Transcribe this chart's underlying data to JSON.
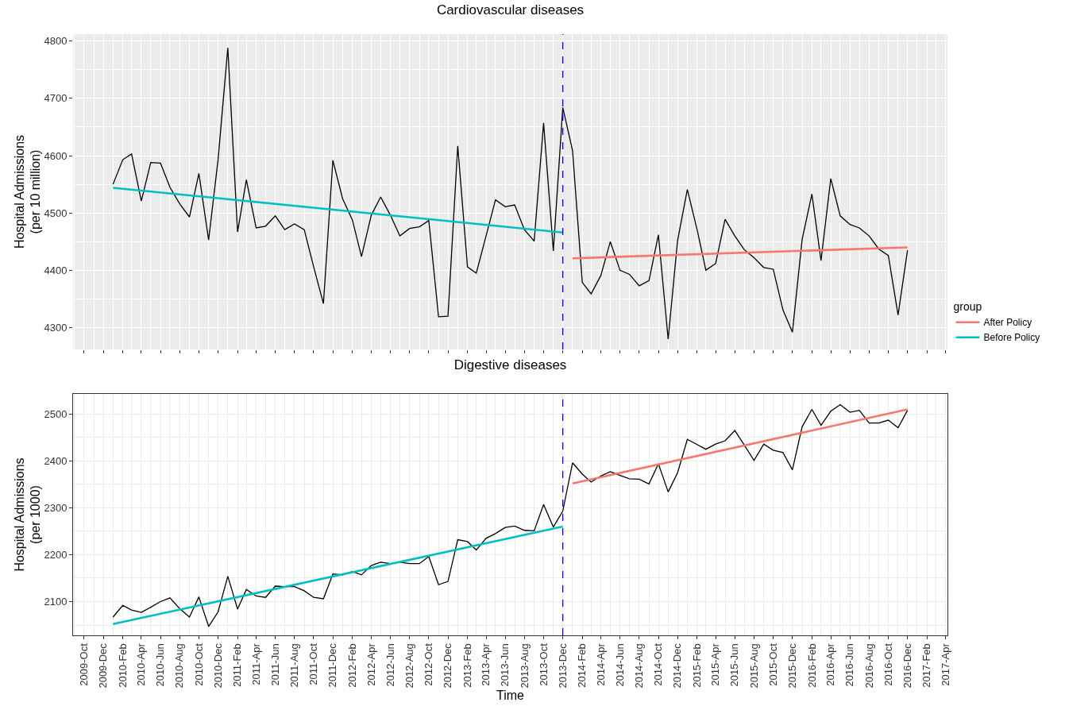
{
  "chart_data": [
    {
      "type": "line",
      "title": "Cardiovascular diseases",
      "ylabel": "Hospital Admissions\n(per 10 million)",
      "legend_title": "group",
      "legend": "right",
      "grid": true,
      "tick_labels": "y",
      "x": [
        "2010-01",
        "2010-02",
        "2010-03",
        "2010-04",
        "2010-05",
        "2010-06",
        "2010-07",
        "2010-08",
        "2010-09",
        "2010-10",
        "2010-11",
        "2010-12",
        "2011-01",
        "2011-02",
        "2011-03",
        "2011-04",
        "2011-05",
        "2011-06",
        "2011-07",
        "2011-08",
        "2011-09",
        "2011-10",
        "2011-11",
        "2011-12",
        "2012-01",
        "2012-02",
        "2012-03",
        "2012-04",
        "2012-05",
        "2012-06",
        "2012-07",
        "2012-08",
        "2012-09",
        "2012-10",
        "2012-11",
        "2012-12",
        "2013-01",
        "2013-02",
        "2013-03",
        "2013-04",
        "2013-05",
        "2013-06",
        "2013-07",
        "2013-08",
        "2013-09",
        "2013-10",
        "2013-11",
        "2013-12",
        "2014-01",
        "2014-02",
        "2014-03",
        "2014-04",
        "2014-05",
        "2014-06",
        "2014-07",
        "2014-08",
        "2014-09",
        "2014-10",
        "2014-11",
        "2014-12",
        "2015-01",
        "2015-02",
        "2015-03",
        "2015-04",
        "2015-05",
        "2015-06",
        "2015-07",
        "2015-08",
        "2015-09",
        "2015-10",
        "2015-11",
        "2015-12",
        "2016-01",
        "2016-02",
        "2016-03",
        "2016-04",
        "2016-05",
        "2016-06",
        "2016-07",
        "2016-08",
        "2016-09",
        "2016-10",
        "2016-11",
        "2016-12"
      ],
      "series": [
        {
          "color": "#000000",
          "values": [
            4550,
            4593,
            4603,
            4521,
            4588,
            4587,
            4545,
            4516,
            4493,
            4569,
            4453,
            4593,
            4788,
            4467,
            4558,
            4474,
            4477,
            4495,
            4471,
            4481,
            4471,
            4406,
            4342,
            4592,
            4525,
            4488,
            4424,
            4496,
            4528,
            4496,
            4460,
            4473,
            4476,
            4487,
            4319,
            4320,
            4617,
            4406,
            4395,
            4460,
            4523,
            4511,
            4514,
            4471,
            4451,
            4657,
            4434,
            4684,
            4609,
            4379,
            4359,
            4391,
            4450,
            4400,
            4393,
            4373,
            4382,
            4462,
            4280,
            4452,
            4541,
            4471,
            4400,
            4412,
            4489,
            4460,
            4436,
            4422,
            4405,
            4402,
            4331,
            4292,
            4454,
            4533,
            4417,
            4560,
            4495,
            4480,
            4474,
            4460,
            4437,
            4426,
            4322,
            4435
          ]
        },
        {
          "name": "After Policy",
          "color": "#f8766d",
          "x": [
            "2014-01",
            "2016-12"
          ],
          "values": [
            4421,
            4440
          ]
        },
        {
          "name": "Before Policy",
          "color": "#00bfc4",
          "x": [
            "2010-01",
            "2013-12"
          ],
          "values": [
            4544,
            4466
          ]
        }
      ],
      "ref_lines": [
        {
          "axis": "x",
          "value": "2013-12",
          "color": "#0000ff",
          "line_style": "dashed"
        }
      ],
      "xlim": [
        "2009-08-27",
        "2017-04-07"
      ],
      "ylim": [
        4262,
        4812
      ],
      "yticks": [
        4300,
        4400,
        4500,
        4600,
        4700,
        4800
      ],
      "xticks": [
        {
          "value": "2009-10",
          "label": null
        },
        {
          "value": "2009-12",
          "label": null
        },
        {
          "value": "2010-02",
          "label": null
        },
        {
          "value": "2010-04",
          "label": null
        },
        {
          "value": "2010-06",
          "label": null
        },
        {
          "value": "2010-08",
          "label": null
        },
        {
          "value": "2010-10",
          "label": null
        },
        {
          "value": "2010-12",
          "label": null
        },
        {
          "value": "2011-02",
          "label": null
        },
        {
          "value": "2011-04",
          "label": null
        },
        {
          "value": "2011-06",
          "label": null
        },
        {
          "value": "2011-08",
          "label": null
        },
        {
          "value": "2011-10",
          "label": null
        },
        {
          "value": "2011-12",
          "label": null
        },
        {
          "value": "2012-02",
          "label": null
        },
        {
          "value": "2012-04",
          "label": null
        },
        {
          "value": "2012-06",
          "label": null
        },
        {
          "value": "2012-08",
          "label": null
        },
        {
          "value": "2012-10",
          "label": null
        },
        {
          "value": "2012-12",
          "label": null
        },
        {
          "value": "2013-02",
          "label": null
        },
        {
          "value": "2013-04",
          "label": null
        },
        {
          "value": "2013-06",
          "label": null
        },
        {
          "value": "2013-08",
          "label": null
        },
        {
          "value": "2013-10",
          "label": null
        },
        {
          "value": "2013-12",
          "label": null
        },
        {
          "value": "2014-02",
          "label": null
        },
        {
          "value": "2014-04",
          "label": null
        },
        {
          "value": "2014-06",
          "label": null
        },
        {
          "value": "2014-08",
          "label": null
        },
        {
          "value": "2014-10",
          "label": null
        },
        {
          "value": "2014-12",
          "label": null
        },
        {
          "value": "2015-02",
          "label": null
        },
        {
          "value": "2015-04",
          "label": null
        },
        {
          "value": "2015-06",
          "label": null
        },
        {
          "value": "2015-08",
          "label": null
        },
        {
          "value": "2015-10",
          "label": null
        },
        {
          "value": "2015-12",
          "label": null
        },
        {
          "value": "2016-02",
          "label": null
        },
        {
          "value": "2016-04",
          "label": null
        },
        {
          "value": "2016-06",
          "label": null
        },
        {
          "value": "2016-08",
          "label": null
        },
        {
          "value": "2016-10",
          "label": null
        },
        {
          "value": "2016-12",
          "label": null
        },
        {
          "value": "2017-02",
          "label": null
        },
        {
          "value": "2017-04",
          "label": null
        }
      ]
    },
    {
      "type": "line",
      "title": "Digestive diseases",
      "xlabel": "Time",
      "ylabel": "Hospital Admissions\n(per 1000)",
      "grid": true,
      "x": [
        "2010-01",
        "2010-02",
        "2010-03",
        "2010-04",
        "2010-05",
        "2010-06",
        "2010-07",
        "2010-08",
        "2010-09",
        "2010-10",
        "2010-11",
        "2010-12",
        "2011-01",
        "2011-02",
        "2011-03",
        "2011-04",
        "2011-05",
        "2011-06",
        "2011-07",
        "2011-08",
        "2011-09",
        "2011-10",
        "2011-11",
        "2011-12",
        "2012-01",
        "2012-02",
        "2012-03",
        "2012-04",
        "2012-05",
        "2012-06",
        "2012-07",
        "2012-08",
        "2012-09",
        "2012-10",
        "2012-11",
        "2012-12",
        "2013-01",
        "2013-02",
        "2013-03",
        "2013-04",
        "2013-05",
        "2013-06",
        "2013-07",
        "2013-08",
        "2013-09",
        "2013-10",
        "2013-11",
        "2013-12",
        "2014-01",
        "2014-02",
        "2014-03",
        "2014-04",
        "2014-05",
        "2014-06",
        "2014-07",
        "2014-08",
        "2014-09",
        "2014-10",
        "2014-11",
        "2014-12",
        "2015-01",
        "2015-02",
        "2015-03",
        "2015-04",
        "2015-05",
        "2015-06",
        "2015-07",
        "2015-08",
        "2015-09",
        "2015-10",
        "2015-11",
        "2015-12",
        "2016-01",
        "2016-02",
        "2016-03",
        "2016-04",
        "2016-05",
        "2016-06",
        "2016-07",
        "2016-08",
        "2016-09",
        "2016-10",
        "2016-11",
        "2016-12"
      ],
      "series": [
        {
          "color": "#000000",
          "values": [
            2067,
            2092,
            2082,
            2077,
            2088,
            2100,
            2108,
            2085,
            2067,
            2110,
            2047,
            2078,
            2154,
            2084,
            2126,
            2112,
            2109,
            2133,
            2132,
            2132,
            2123,
            2109,
            2106,
            2159,
            2157,
            2164,
            2157,
            2177,
            2184,
            2181,
            2184,
            2181,
            2181,
            2196,
            2136,
            2143,
            2232,
            2228,
            2210,
            2235,
            2245,
            2258,
            2261,
            2252,
            2251,
            2307,
            2259,
            2293,
            2396,
            2372,
            2355,
            2368,
            2377,
            2369,
            2362,
            2361,
            2351,
            2394,
            2334,
            2375,
            2446,
            2435,
            2425,
            2436,
            2443,
            2465,
            2434,
            2401,
            2436,
            2423,
            2418,
            2381,
            2473,
            2510,
            2476,
            2506,
            2520,
            2504,
            2508,
            2481,
            2481,
            2487,
            2471,
            2508
          ]
        },
        {
          "color": "#f8766d",
          "x": [
            "2014-01",
            "2016-12"
          ],
          "values": [
            2352,
            2510
          ]
        },
        {
          "color": "#00bfc4",
          "x": [
            "2010-01",
            "2013-12"
          ],
          "values": [
            2052,
            2260
          ]
        }
      ],
      "ref_lines": [
        {
          "axis": "x",
          "value": "2013-12",
          "color": "#0000ff",
          "line_style": "dashed"
        }
      ],
      "xlim": [
        "2009-08-27",
        "2017-04-07"
      ],
      "ylim": [
        2028,
        2543
      ],
      "yticks": [
        2100,
        2200,
        2300,
        2400,
        2500
      ],
      "xticks": [
        {
          "value": "2009-10",
          "label": "2009-Oct"
        },
        {
          "value": "2009-12",
          "label": "2009-Dec"
        },
        {
          "value": "2010-02",
          "label": "2010-Feb"
        },
        {
          "value": "2010-04",
          "label": "2010-Apr"
        },
        {
          "value": "2010-06",
          "label": "2010-Jun"
        },
        {
          "value": "2010-08",
          "label": "2010-Aug"
        },
        {
          "value": "2010-10",
          "label": "2010-Oct"
        },
        {
          "value": "2010-12",
          "label": "2010-Dec"
        },
        {
          "value": "2011-02",
          "label": "2011-Feb"
        },
        {
          "value": "2011-04",
          "label": "2011-Apr"
        },
        {
          "value": "2011-06",
          "label": "2011-Jun"
        },
        {
          "value": "2011-08",
          "label": "2011-Aug"
        },
        {
          "value": "2011-10",
          "label": "2011-Oct"
        },
        {
          "value": "2011-12",
          "label": "2011-Dec"
        },
        {
          "value": "2012-02",
          "label": "2012-Feb"
        },
        {
          "value": "2012-04",
          "label": "2012-Apr"
        },
        {
          "value": "2012-06",
          "label": "2012-Jun"
        },
        {
          "value": "2012-08",
          "label": "2012-Aug"
        },
        {
          "value": "2012-10",
          "label": "2012-Oct"
        },
        {
          "value": "2012-12",
          "label": "2012-Dec"
        },
        {
          "value": "2013-02",
          "label": "2013-Feb"
        },
        {
          "value": "2013-04",
          "label": "2013-Apr"
        },
        {
          "value": "2013-06",
          "label": "2013-Jun"
        },
        {
          "value": "2013-08",
          "label": "2013-Aug"
        },
        {
          "value": "2013-10",
          "label": "2013-Oct"
        },
        {
          "value": "2013-12",
          "label": "2013-Dec"
        },
        {
          "value": "2014-02",
          "label": "2014-Feb"
        },
        {
          "value": "2014-04",
          "label": "2014-Apr"
        },
        {
          "value": "2014-06",
          "label": "2014-Jun"
        },
        {
          "value": "2014-08",
          "label": "2014-Aug"
        },
        {
          "value": "2014-10",
          "label": "2014-Oct"
        },
        {
          "value": "2014-12",
          "label": "2014-Dec"
        },
        {
          "value": "2015-02",
          "label": "2015-Feb"
        },
        {
          "value": "2015-04",
          "label": "2015-Apr"
        },
        {
          "value": "2015-06",
          "label": "2015-Jun"
        },
        {
          "value": "2015-08",
          "label": "2015-Aug"
        },
        {
          "value": "2015-10",
          "label": "2015-Oct"
        },
        {
          "value": "2015-12",
          "label": "2015-Dec"
        },
        {
          "value": "2016-02",
          "label": "2016-Feb"
        },
        {
          "value": "2016-04",
          "label": "2016-Apr"
        },
        {
          "value": "2016-06",
          "label": "2016-Jun"
        },
        {
          "value": "2016-08",
          "label": "2016-Aug"
        },
        {
          "value": "2016-10",
          "label": "2016-Oct"
        },
        {
          "value": "2016-12",
          "label": "2016-Dec"
        },
        {
          "value": "2017-02",
          "label": "2017-Feb"
        },
        {
          "value": "2017-04",
          "label": "2017-Apr"
        }
      ]
    }
  ]
}
